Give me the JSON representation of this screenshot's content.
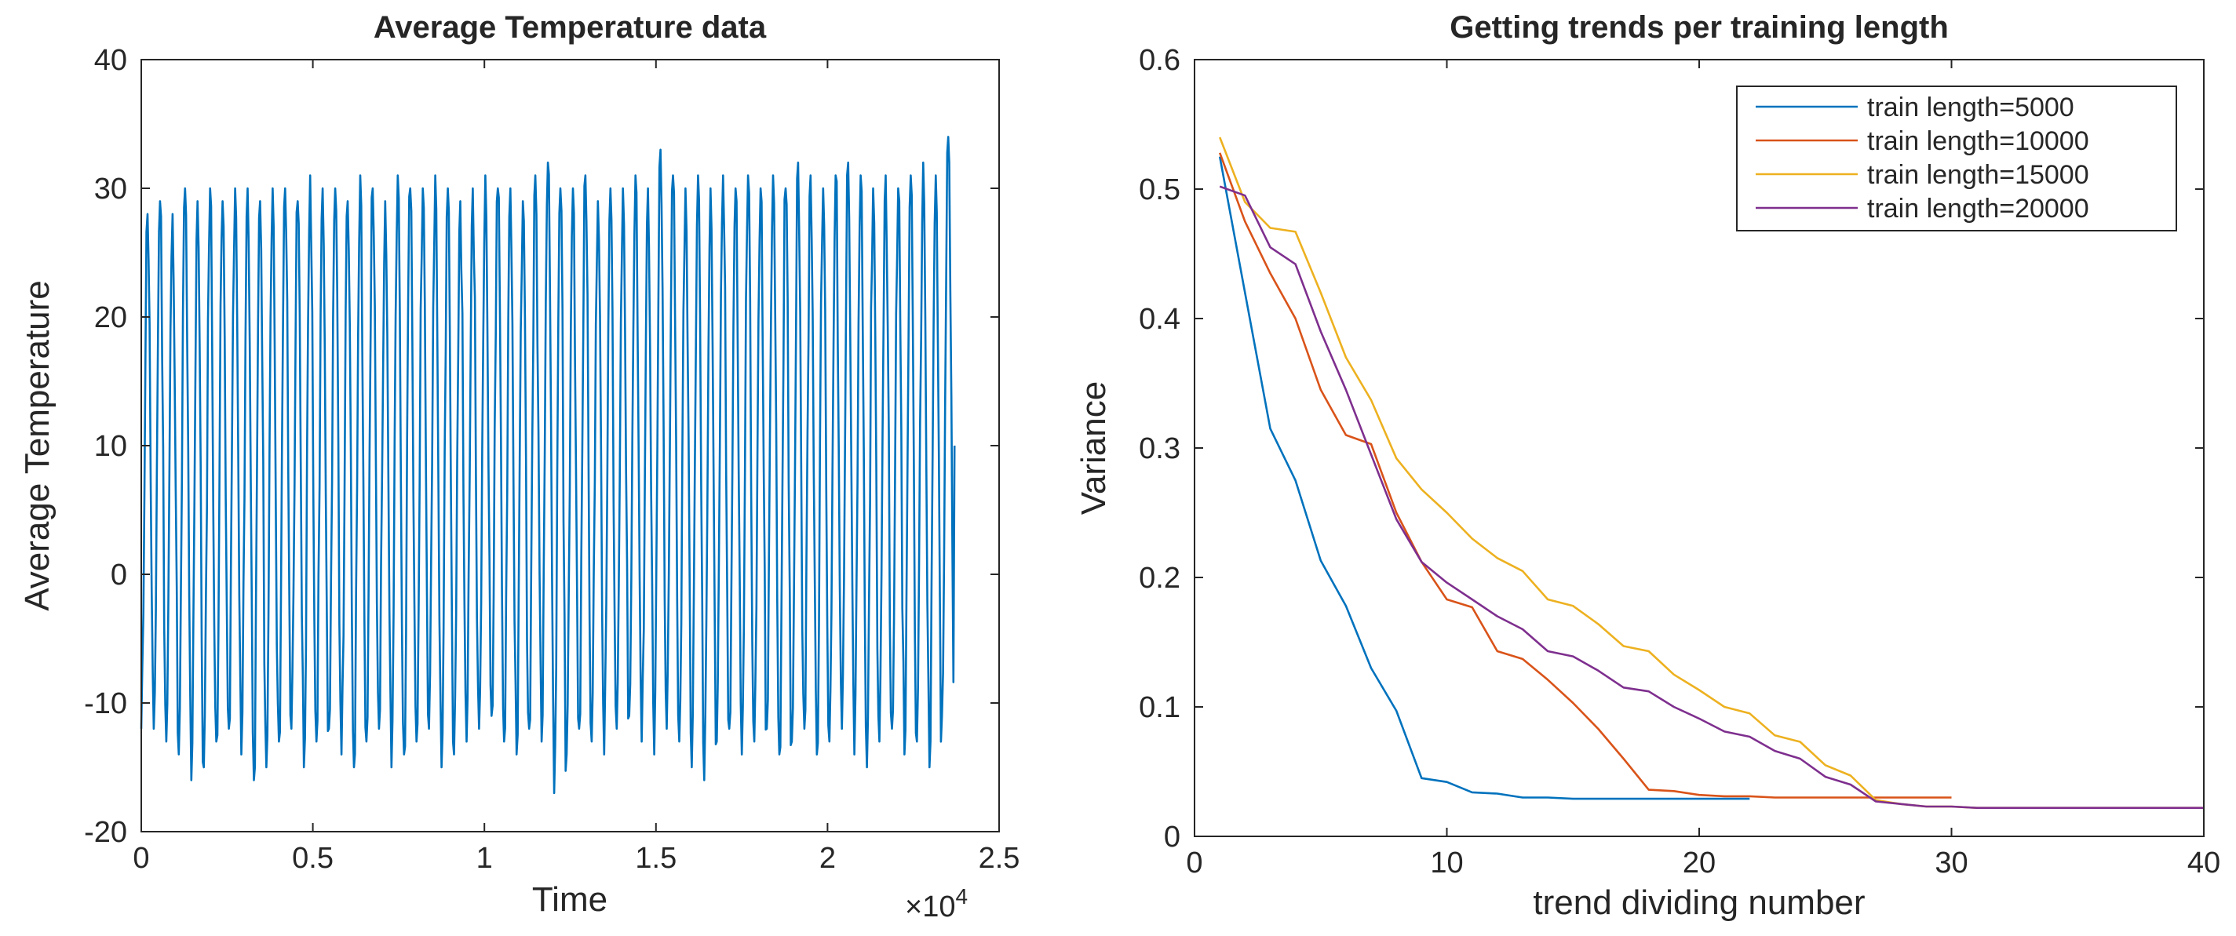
{
  "chart_data": [
    {
      "type": "line",
      "title": "Average Temperature data",
      "xlabel": "Time",
      "ylabel": "Average Temperature",
      "xlim": [
        0,
        25000
      ],
      "ylim": [
        -20,
        40
      ],
      "x_exponent_label": "×10",
      "x_exponent_power": "4",
      "xticks": [
        0,
        5000,
        10000,
        15000,
        20000,
        25000
      ],
      "xtick_labels": [
        "0",
        "0.5",
        "1",
        "1.5",
        "2",
        "2.5"
      ],
      "yticks": [
        -20,
        -10,
        0,
        10,
        20,
        30,
        40
      ],
      "ytick_labels": [
        "-20",
        "-10",
        "0",
        "10",
        "20",
        "30",
        "40"
      ],
      "color": "#0072BD",
      "series": [
        {
          "name": "Average Temperature",
          "description": "Daily seasonal oscillation, ~65 annual cycles over 23,700 samples",
          "x_start": 0,
          "x_end": 23700,
          "cycles": 65,
          "cycle_peaks": [
            28,
            29,
            28,
            30,
            29,
            30,
            29,
            30,
            30,
            29,
            30,
            30,
            29,
            31,
            30,
            30,
            29,
            31,
            30,
            29,
            31,
            30,
            30,
            31,
            30,
            29,
            30,
            31,
            30,
            30,
            29,
            31,
            32,
            30,
            30,
            31,
            29,
            30,
            30,
            31,
            30,
            33,
            31,
            30,
            31,
            30,
            31,
            30,
            31,
            30,
            31,
            30,
            32,
            31,
            30,
            31,
            32,
            31,
            30,
            31,
            30,
            31,
            32,
            31,
            34
          ],
          "cycle_troughs": [
            -12,
            -12,
            -13,
            -14,
            -16,
            -15,
            -13,
            -12,
            -14,
            -16,
            -15,
            -13,
            -12,
            -15,
            -13,
            -12,
            -14,
            -15,
            -13,
            -12,
            -15,
            -14,
            -13,
            -12,
            -15,
            -14,
            -13,
            -12,
            -11,
            -13,
            -14,
            -12,
            -13,
            -17,
            -14,
            -12,
            -13,
            -14,
            -12,
            -11,
            -13,
            -14,
            -12,
            -13,
            -15,
            -16,
            -13,
            -12,
            -14,
            -13,
            -12,
            -14,
            -13,
            -12,
            -14,
            -13,
            -12,
            -14,
            -15,
            -13,
            -12,
            -14,
            -13,
            -15,
            -11
          ]
        }
      ]
    },
    {
      "type": "line",
      "title": "Getting trends per training length",
      "xlabel": "trend dividing number",
      "ylabel": "Variance",
      "xlim": [
        0,
        40
      ],
      "ylim": [
        0,
        0.6
      ],
      "xticks": [
        0,
        10,
        20,
        30,
        40
      ],
      "xtick_labels": [
        "0",
        "10",
        "20",
        "30",
        "40"
      ],
      "yticks": [
        0,
        0.1,
        0.2,
        0.3,
        0.4,
        0.5,
        0.6
      ],
      "ytick_labels": [
        "0",
        "0.1",
        "0.2",
        "0.3",
        "0.4",
        "0.5",
        "0.6"
      ],
      "legend_position": "top-right",
      "series": [
        {
          "name": "train length=5000",
          "color": "#0072BD",
          "x": [
            1,
            2,
            3,
            4,
            5,
            6,
            7,
            8,
            9,
            10,
            11,
            12,
            13,
            14,
            15,
            16,
            17,
            18,
            19,
            20,
            21,
            22
          ],
          "y": [
            0.525,
            0.42,
            0.315,
            0.275,
            0.213,
            0.178,
            0.13,
            0.097,
            0.045,
            0.042,
            0.034,
            0.033,
            0.03,
            0.03,
            0.029,
            0.029,
            0.029,
            0.029,
            0.029,
            0.029,
            0.029,
            0.029
          ]
        },
        {
          "name": "train length=10000",
          "color": "#D95319",
          "x": [
            1,
            2,
            3,
            4,
            5,
            6,
            7,
            8,
            9,
            10,
            11,
            12,
            13,
            14,
            15,
            16,
            17,
            18,
            19,
            20,
            21,
            22,
            23,
            24,
            25,
            26,
            27,
            28,
            29,
            30
          ],
          "y": [
            0.528,
            0.475,
            0.435,
            0.4,
            0.345,
            0.31,
            0.303,
            0.25,
            0.212,
            0.183,
            0.177,
            0.143,
            0.137,
            0.121,
            0.103,
            0.083,
            0.06,
            0.036,
            0.035,
            0.032,
            0.031,
            0.031,
            0.03,
            0.03,
            0.03,
            0.03,
            0.03,
            0.03,
            0.03,
            0.03
          ]
        },
        {
          "name": "train length=15000",
          "color": "#EDB120",
          "x": [
            1,
            2,
            3,
            4,
            5,
            6,
            7,
            8,
            9,
            10,
            11,
            12,
            13,
            14,
            15,
            16,
            17,
            18,
            19,
            20,
            21,
            22,
            23,
            24,
            25,
            26,
            27,
            28,
            29,
            30,
            31,
            32,
            33,
            34,
            35,
            36,
            37,
            38,
            39,
            40
          ],
          "y": [
            0.54,
            0.49,
            0.47,
            0.467,
            0.42,
            0.37,
            0.337,
            0.292,
            0.268,
            0.25,
            0.23,
            0.215,
            0.205,
            0.183,
            0.178,
            0.164,
            0.147,
            0.143,
            0.125,
            0.113,
            0.1,
            0.095,
            0.078,
            0.073,
            0.055,
            0.047,
            0.028,
            0.025,
            0.023,
            0.023,
            0.022,
            0.022,
            0.022,
            0.022,
            0.022,
            0.022,
            0.022,
            0.022,
            0.022,
            0.022
          ]
        },
        {
          "name": "train length=20000",
          "color": "#7E2F8E",
          "x": [
            1,
            2,
            3,
            4,
            5,
            6,
            7,
            8,
            9,
            10,
            11,
            12,
            13,
            14,
            15,
            16,
            17,
            18,
            19,
            20,
            21,
            22,
            23,
            24,
            25,
            26,
            27,
            28,
            29,
            30,
            31,
            32,
            33,
            34,
            35,
            36,
            37,
            38,
            39,
            40
          ],
          "y": [
            0.502,
            0.495,
            0.455,
            0.442,
            0.39,
            0.345,
            0.295,
            0.245,
            0.212,
            0.196,
            0.183,
            0.17,
            0.16,
            0.143,
            0.139,
            0.128,
            0.115,
            0.112,
            0.1,
            0.091,
            0.081,
            0.077,
            0.066,
            0.06,
            0.046,
            0.04,
            0.027,
            0.025,
            0.023,
            0.023,
            0.022,
            0.022,
            0.022,
            0.022,
            0.022,
            0.022,
            0.022,
            0.022,
            0.022,
            0.022
          ]
        }
      ]
    }
  ]
}
